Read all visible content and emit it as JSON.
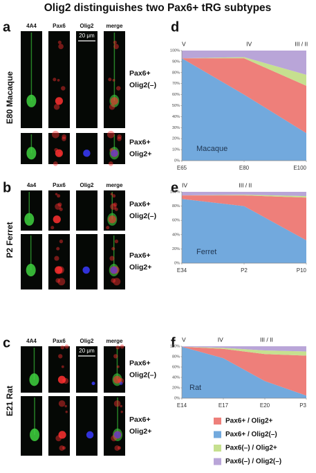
{
  "title": "Olig2 distinguishes two Pax6+ tRG subtypes",
  "image_panels": [
    {
      "letter": "a",
      "label": "E80 Macaque",
      "columns": [
        "4A4",
        "Pax6",
        "Olig2",
        "merge"
      ],
      "scale_bar": "20 μm",
      "rows": [
        [
          "Pax6+",
          "Olig2(–)"
        ],
        [
          "Pax6+",
          "Olig2+"
        ]
      ]
    },
    {
      "letter": "b",
      "label": "P2 Ferret",
      "columns": [
        "4a4",
        "Pax6",
        "Olig2",
        "merge"
      ],
      "rows": [
        [
          "Pax6+",
          "Olig2(–)"
        ],
        [
          "Pax6+",
          "Olig2+"
        ]
      ]
    },
    {
      "letter": "c",
      "label": "E21 Rat",
      "columns": [
        "4A4",
        "Pax6",
        "Olig2",
        "merge"
      ],
      "scale_bar": "20 μm",
      "rows": [
        [
          "Pax6+",
          "Olig2(–)"
        ],
        [
          "Pax6+",
          "Olig2+"
        ]
      ]
    }
  ],
  "chart_data": [
    {
      "type": "area",
      "letter": "d",
      "label": "Macaque",
      "categories": [
        "E65",
        "E80",
        "E100"
      ],
      "annotations": [
        "V",
        "IV",
        "III / II"
      ],
      "ylim": [
        0,
        100
      ],
      "yticks": [
        {
          "value": 0,
          "label": "0%"
        },
        {
          "value": 10,
          "label": "10%"
        },
        {
          "value": 20,
          "label": "20%"
        },
        {
          "value": 30,
          "label": "30%"
        },
        {
          "value": 40,
          "label": "40%"
        },
        {
          "value": 50,
          "label": "50%"
        },
        {
          "value": 60,
          "label": "60%"
        },
        {
          "value": 70,
          "label": "70%"
        },
        {
          "value": 80,
          "label": "80%"
        },
        {
          "value": 90,
          "label": "90%"
        },
        {
          "value": 100,
          "label": "100%"
        }
      ],
      "series": [
        {
          "values": [
            0,
            33,
            43
          ]
        },
        {
          "values": [
            93,
            60,
            25
          ]
        },
        {
          "values": [
            0,
            1,
            10
          ]
        },
        {
          "values": [
            7,
            6,
            22
          ]
        }
      ]
    },
    {
      "type": "area",
      "letter": "e",
      "label": "Ferret",
      "categories": [
        "E34",
        "P2",
        "P10"
      ],
      "annotations": [
        "IV",
        "III / II"
      ],
      "ylim": [
        0,
        100
      ],
      "yticks": [
        {
          "value": 0,
          "label": "0%"
        },
        {
          "value": 20,
          "label": "20%"
        },
        {
          "value": 40,
          "label": "40%"
        },
        {
          "value": 60,
          "label": "60%"
        },
        {
          "value": 80,
          "label": "80%"
        },
        {
          "value": 100,
          "label": "100%"
        }
      ],
      "series": [
        {
          "values": [
            5,
            15,
            60
          ]
        },
        {
          "values": [
            90,
            80,
            32
          ]
        },
        {
          "values": [
            0,
            1,
            2
          ]
        },
        {
          "values": [
            5,
            4,
            6
          ]
        }
      ]
    },
    {
      "type": "area",
      "letter": "f",
      "label": "Rat",
      "categories": [
        "E14",
        "E17",
        "E20",
        "P3"
      ],
      "annotations": [
        "V",
        "IV",
        "III / II"
      ],
      "ylim": [
        0,
        100
      ],
      "yticks": [
        {
          "value": 0,
          "label": "0%"
        },
        {
          "value": 20,
          "label": "20%"
        },
        {
          "value": 40,
          "label": "40%"
        },
        {
          "value": 60,
          "label": "60%"
        },
        {
          "value": 80,
          "label": "80%"
        },
        {
          "value": 100,
          "label": "100%"
        }
      ],
      "series": [
        {
          "values": [
            0,
            18,
            52,
            77
          ]
        },
        {
          "values": [
            99,
            77,
            33,
            5
          ]
        },
        {
          "values": [
            0,
            2,
            7,
            8
          ]
        },
        {
          "values": [
            1,
            3,
            8,
            10
          ]
        }
      ]
    }
  ],
  "legend": [
    {
      "name": "Pax6+ / Olig2+",
      "color": "#ee7f7a"
    },
    {
      "name": "Pax6+ / Olig2(–)",
      "color": "#72a9dd"
    },
    {
      "name": "Pax6(–) / Olig2+",
      "color": "#c6e08f"
    },
    {
      "name": "Pax6(–) / Olig2(–)",
      "color": "#b9a5d8"
    }
  ]
}
